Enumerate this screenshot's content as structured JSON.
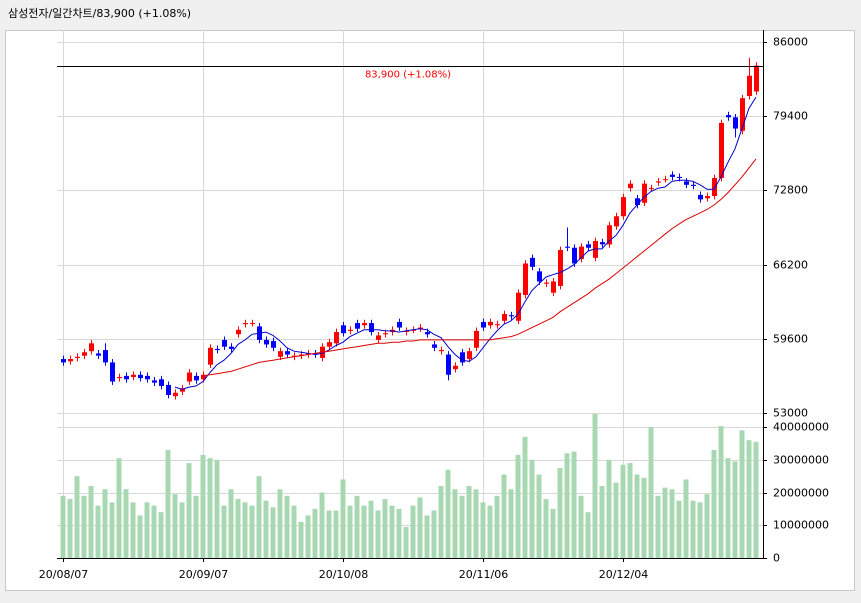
{
  "chart_data": {
    "type": "candlestick",
    "title": "삼성전자/일간차트/83,900  (+1.08%)",
    "last_label": "83,900 (+1.08%)",
    "up_color": "#ff0000",
    "down_color": "#0000ff",
    "grid": true,
    "ylim": [
      53000,
      86000
    ],
    "yticks": [
      53000,
      59600,
      66200,
      72800,
      79400,
      86000
    ],
    "categories": [
      "20/08/07",
      null,
      null,
      null,
      null,
      null,
      null,
      null,
      null,
      null,
      null,
      null,
      null,
      null,
      null,
      null,
      null,
      null,
      null,
      null,
      "20/09/07",
      null,
      null,
      null,
      null,
      null,
      null,
      null,
      null,
      null,
      null,
      null,
      null,
      null,
      null,
      null,
      null,
      null,
      null,
      null,
      "20/10/08",
      null,
      null,
      null,
      null,
      null,
      null,
      null,
      null,
      null,
      null,
      null,
      null,
      null,
      null,
      null,
      null,
      null,
      null,
      null,
      "20/11/06",
      null,
      null,
      null,
      null,
      null,
      null,
      null,
      null,
      null,
      null,
      null,
      null,
      null,
      null,
      null,
      null,
      null,
      null,
      null,
      "20/12/04",
      null,
      null,
      null,
      null,
      null,
      null,
      null,
      null,
      null,
      null,
      null,
      null,
      null,
      null,
      null,
      null,
      null,
      null,
      null
    ],
    "open": [
      57800,
      57600,
      57900,
      58100,
      58500,
      58300,
      58600,
      57500,
      56100,
      56300,
      56200,
      56400,
      56300,
      55900,
      56000,
      55500,
      54500,
      54900,
      55800,
      56300,
      56000,
      57300,
      58700,
      59500,
      58900,
      60000,
      60900,
      61000,
      60700,
      59500,
      59400,
      58000,
      58500,
      58000,
      58100,
      58200,
      58300,
      57900,
      58900,
      59200,
      60800,
      60300,
      61000,
      60800,
      61000,
      59500,
      60000,
      60200,
      61100,
      60200,
      60400,
      60500,
      60200,
      59100,
      58500,
      58200,
      56900,
      58400,
      57800,
      58800,
      61100,
      60800,
      60800,
      61200,
      61700,
      61200,
      63500,
      66800,
      65600,
      64500,
      63700,
      64300,
      67800,
      67700,
      66700,
      68000,
      66800,
      68200,
      68000,
      69600,
      70500,
      73000,
      72100,
      71700,
      73000,
      73500,
      73800,
      74200,
      74000,
      73600,
      73300,
      72400,
      72100,
      72300,
      73900,
      79500,
      79300,
      78100,
      81200,
      81600
    ],
    "high": [
      58100,
      58100,
      58300,
      58700,
      59500,
      58600,
      59200,
      57800,
      56500,
      56600,
      56700,
      56700,
      56600,
      56200,
      56300,
      55800,
      55100,
      55500,
      56900,
      56600,
      56700,
      59100,
      59000,
      59800,
      59200,
      60700,
      61300,
      61300,
      61000,
      59800,
      59700,
      58800,
      58800,
      58400,
      58500,
      58600,
      58600,
      59200,
      59600,
      60500,
      61100,
      60700,
      61300,
      61300,
      61300,
      60200,
      60400,
      60700,
      61400,
      60600,
      60700,
      60900,
      60500,
      59400,
      58900,
      58500,
      57500,
      58700,
      58800,
      60600,
      61400,
      61400,
      61200,
      62100,
      62000,
      64000,
      66600,
      67100,
      65900,
      64900,
      65000,
      67800,
      69500,
      68000,
      68100,
      68300,
      68600,
      68500,
      70000,
      70800,
      72500,
      73700,
      72400,
      73700,
      73300,
      73900,
      74100,
      74500,
      74300,
      73900,
      73600,
      72700,
      72600,
      74200,
      79100,
      79800,
      79600,
      81300,
      84600,
      84200
    ],
    "low": [
      57200,
      57300,
      57600,
      57800,
      58200,
      57800,
      57200,
      55500,
      55800,
      55700,
      55900,
      55800,
      55700,
      55400,
      55100,
      54300,
      54200,
      54600,
      55500,
      55600,
      55700,
      57000,
      58300,
      58600,
      58400,
      59700,
      60600,
      60700,
      59200,
      58800,
      58500,
      57700,
      57900,
      57700,
      57800,
      57900,
      57900,
      57600,
      58600,
      58900,
      59800,
      60000,
      60200,
      60500,
      59900,
      59200,
      59700,
      59900,
      60300,
      59900,
      60100,
      60200,
      59700,
      58500,
      58200,
      55900,
      56600,
      57200,
      57500,
      58500,
      60300,
      60500,
      60500,
      60900,
      61300,
      60900,
      63200,
      65700,
      64400,
      64200,
      63400,
      64000,
      67400,
      66000,
      66400,
      67400,
      66500,
      67700,
      67700,
      69300,
      70200,
      72700,
      71200,
      71400,
      72700,
      73200,
      73500,
      73700,
      73600,
      73000,
      72900,
      71700,
      71800,
      72000,
      73600,
      79000,
      77500,
      77800,
      80900,
      81300
    ],
    "close": [
      57500,
      57800,
      58000,
      58400,
      59200,
      58100,
      57500,
      55800,
      56200,
      56000,
      56400,
      56100,
      56000,
      55700,
      55400,
      54600,
      54800,
      55200,
      56600,
      55900,
      56400,
      58800,
      58600,
      58900,
      58700,
      60400,
      61000,
      61000,
      59500,
      59100,
      58800,
      58500,
      58200,
      58100,
      58200,
      58300,
      58200,
      58900,
      59300,
      60200,
      60100,
      60400,
      60500,
      61000,
      60200,
      59900,
      60100,
      60400,
      60600,
      60300,
      60400,
      60600,
      60000,
      58800,
      58600,
      56400,
      57200,
      57500,
      58500,
      60300,
      60600,
      61100,
      60900,
      61800,
      61600,
      63700,
      66300,
      66000,
      64700,
      64600,
      64700,
      67500,
      67700,
      66300,
      67800,
      67700,
      68300,
      68000,
      69700,
      70500,
      72200,
      73400,
      71500,
      73400,
      73000,
      73600,
      73800,
      74000,
      73900,
      73300,
      73200,
      72000,
      72300,
      73900,
      78800,
      79300,
      78300,
      81000,
      83000,
      83900
    ],
    "moving_averages": [
      {
        "color": "#0000cc",
        "values": [
          null,
          null,
          null,
          null,
          null,
          null,
          null,
          null,
          null,
          null,
          null,
          null,
          null,
          null,
          null,
          null,
          55300,
          55100,
          55300,
          55400,
          55800,
          56600,
          57300,
          57700,
          58300,
          59100,
          59500,
          60000,
          60100,
          60200,
          59900,
          59400,
          58800,
          58500,
          58400,
          58300,
          58200,
          58300,
          58600,
          59000,
          59300,
          59800,
          60100,
          60400,
          60400,
          60400,
          60300,
          60300,
          60200,
          60300,
          60400,
          60500,
          60400,
          60000,
          59700,
          58900,
          58200,
          57700,
          57600,
          58000,
          58800,
          59600,
          60300,
          60900,
          61200,
          61800,
          62900,
          63900,
          64500,
          65100,
          65300,
          65500,
          65800,
          66200,
          66800,
          67400,
          67600,
          67600,
          68300,
          68800,
          69700,
          70800,
          71500,
          72200,
          72700,
          73000,
          73100,
          73600,
          73700,
          73700,
          73600,
          73300,
          72900,
          72900,
          74000,
          75300,
          76500,
          78300,
          80100,
          81100
        ]
      },
      {
        "color": "#dd0000",
        "values": [
          null,
          null,
          null,
          null,
          null,
          null,
          null,
          null,
          null,
          null,
          null,
          null,
          null,
          null,
          null,
          null,
          null,
          null,
          null,
          null,
          56300,
          56400,
          56500,
          56600,
          56700,
          56900,
          57100,
          57300,
          57500,
          57600,
          57700,
          57800,
          57900,
          58000,
          58100,
          58200,
          58300,
          58400,
          58500,
          58600,
          58700,
          58800,
          58900,
          59000,
          59100,
          59200,
          59200,
          59300,
          59300,
          59400,
          59400,
          59500,
          59500,
          59500,
          59500,
          59500,
          59500,
          59500,
          59500,
          59500,
          59500,
          59500,
          59600,
          59700,
          59800,
          60000,
          60300,
          60600,
          60900,
          61200,
          61500,
          62000,
          62400,
          62800,
          63200,
          63600,
          64100,
          64500,
          64900,
          65400,
          65900,
          66400,
          66900,
          67400,
          67900,
          68400,
          68900,
          69400,
          69800,
          70200,
          70500,
          70800,
          71100,
          71500,
          72000,
          72600,
          73300,
          74000,
          74800,
          75600
        ]
      }
    ],
    "volume": {
      "color": "#a8d8b2",
      "ylim": [
        0,
        44300000
      ],
      "yticks": [
        0,
        10000000,
        20000000,
        30000000,
        40000000
      ],
      "values": [
        19000000,
        18000000,
        25000000,
        19000000,
        22000000,
        16000000,
        21000000,
        17000000,
        30500000,
        21000000,
        17000000,
        13000000,
        17000000,
        16000000,
        14000000,
        33000000,
        19500000,
        17000000,
        29000000,
        19000000,
        31500000,
        30500000,
        30000000,
        16000000,
        21000000,
        18000000,
        17000000,
        16000000,
        25000000,
        17500000,
        15500000,
        21000000,
        19000000,
        16000000,
        11000000,
        13000000,
        15000000,
        20000000,
        14500000,
        14500000,
        24000000,
        16000000,
        19000000,
        16000000,
        17500000,
        14500000,
        18000000,
        16000000,
        15000000,
        9500000,
        16000000,
        18500000,
        13000000,
        14500000,
        22000000,
        27000000,
        21000000,
        19000000,
        22000000,
        21000000,
        17000000,
        16000000,
        19000000,
        25500000,
        21000000,
        31500000,
        37000000,
        30000000,
        25500000,
        18000000,
        15000000,
        27500000,
        32000000,
        32500000,
        19000000,
        14000000,
        44000000,
        22000000,
        30000000,
        23000000,
        28500000,
        29000000,
        25500000,
        24500000,
        40000000,
        19000000,
        21500000,
        21000000,
        17500000,
        24000000,
        17500000,
        17000000,
        19500000,
        33000000,
        40300000,
        30500000,
        29500000,
        39000000,
        36000000,
        35500000
      ]
    }
  }
}
